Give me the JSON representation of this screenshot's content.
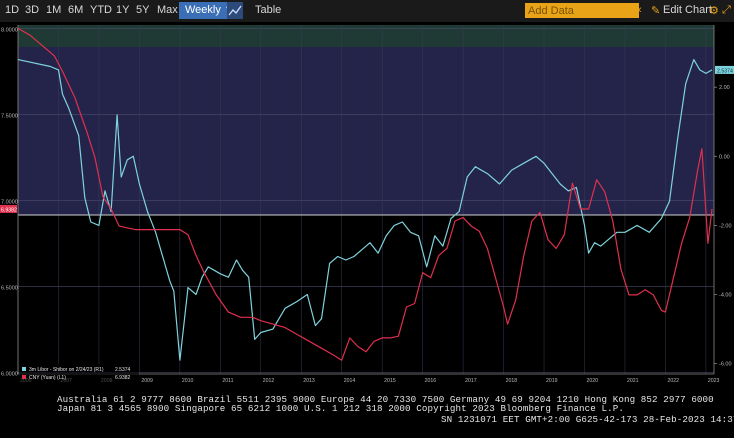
{
  "toolbar": {
    "ranges": [
      "1D",
      "3D",
      "1M",
      "6M",
      "YTD",
      "1Y",
      "5Y",
      "Max"
    ],
    "frequency": "Weekly ▼",
    "table_label": "Table",
    "add_data_placeholder": "Add Data",
    "edit_chart_label": "Edit Chart",
    "icons": [
      "chart-type-icon",
      "chevron-left-icon",
      "edit-pencil-icon",
      "settings-icon",
      "expand-icon"
    ]
  },
  "chart_data": {
    "type": "line",
    "panels": [
      {
        "name": "upper",
        "background": "#24244a",
        "highlight_band": "#1f3a35"
      },
      {
        "name": "lower",
        "background": "#000000"
      }
    ],
    "x_ticks": [
      "2006",
      "2007",
      "2008",
      "2009",
      "2010",
      "2011",
      "2012",
      "2013",
      "2014",
      "2015",
      "2016",
      "2017",
      "2018",
      "2019",
      "2020",
      "2021",
      "2022",
      "2023"
    ],
    "xlim": [
      2006.0,
      2023.2
    ],
    "left_axis": {
      "ticks": [
        "8.0000",
        "7.5000",
        "7.0000",
        "6.5000",
        "6.0000"
      ],
      "ylim": [
        5.99,
        8.02
      ]
    },
    "right_axis": {
      "ticks": [
        "2.00",
        "0.00",
        "-2.00",
        "-4.00",
        "-6.00"
      ],
      "ylim": [
        -6.3,
        3.8
      ]
    },
    "series": [
      {
        "name": "3m Libor - Shibor on 2/24/23 (R1)",
        "last_value": "2.5374",
        "color": "#7fd3dc",
        "x": [
          2006.0,
          2006.8,
          2007.0,
          2007.1,
          2007.25,
          2007.5,
          2007.65,
          2007.8,
          2008.0,
          2008.15,
          2008.3,
          2008.45,
          2008.55,
          2008.7,
          2008.85,
          2009.0,
          2009.2,
          2009.4,
          2009.6,
          2009.75,
          2009.85,
          2010.0,
          2010.2,
          2010.4,
          2010.55,
          2010.7,
          2010.85,
          2011.0,
          2011.2,
          2011.4,
          2011.55,
          2011.7,
          2011.85,
          2012.0,
          2012.3,
          2012.6,
          2012.9,
          2013.15,
          2013.35,
          2013.5,
          2013.7,
          2013.9,
          2014.1,
          2014.3,
          2014.5,
          2014.7,
          2014.9,
          2015.1,
          2015.3,
          2015.5,
          2015.7,
          2015.9,
          2016.1,
          2016.3,
          2016.5,
          2016.7,
          2016.9,
          2017.1,
          2017.3,
          2017.6,
          2017.9,
          2018.2,
          2018.5,
          2018.8,
          2019.0,
          2019.2,
          2019.4,
          2019.6,
          2019.8,
          2020.0,
          2020.1,
          2020.25,
          2020.4,
          2020.6,
          2020.8,
          2021.0,
          2021.3,
          2021.6,
          2021.9,
          2022.1,
          2022.3,
          2022.5,
          2022.7,
          2022.85,
          2023.0,
          2023.15
        ],
        "values": [
          2.8,
          2.6,
          2.5,
          1.8,
          1.4,
          0.6,
          -1.2,
          -1.9,
          -2.0,
          -1.0,
          -1.6,
          1.2,
          -0.6,
          -0.1,
          0.0,
          -0.8,
          -1.6,
          -2.2,
          -3.0,
          -3.6,
          -3.9,
          -5.9,
          -3.8,
          -4.0,
          -3.5,
          -3.2,
          -3.3,
          -3.4,
          -3.5,
          -3.0,
          -3.3,
          -3.5,
          -5.3,
          -5.1,
          -5.0,
          -4.4,
          -4.2,
          -4.0,
          -4.9,
          -4.7,
          -3.1,
          -2.9,
          -3.0,
          -2.9,
          -2.7,
          -2.5,
          -2.8,
          -2.3,
          -2.0,
          -1.9,
          -2.2,
          -2.3,
          -3.2,
          -2.3,
          -2.6,
          -1.8,
          -1.6,
          -0.6,
          -0.3,
          -0.5,
          -0.8,
          -0.4,
          -0.2,
          0.0,
          -0.2,
          -0.5,
          -0.8,
          -1.0,
          -0.9,
          -2.0,
          -2.8,
          -2.5,
          -2.6,
          -2.4,
          -2.2,
          -2.2,
          -2.0,
          -2.2,
          -1.8,
          -1.3,
          0.5,
          2.1,
          2.8,
          2.5,
          2.4,
          2.5
        ]
      },
      {
        "name": "CNY (Yuan) (L1)",
        "last_value": "6.9382",
        "color": "#e0304e",
        "x": [
          2006.0,
          2006.3,
          2006.6,
          2006.9,
          2007.1,
          2007.4,
          2007.7,
          2007.9,
          2008.1,
          2008.3,
          2008.5,
          2008.7,
          2008.9,
          2009.2,
          2009.5,
          2009.8,
          2010.0,
          2010.2,
          2010.4,
          2010.6,
          2010.9,
          2011.2,
          2011.5,
          2011.8,
          2012.0,
          2012.3,
          2012.6,
          2012.9,
          2013.2,
          2013.5,
          2013.8,
          2014.0,
          2014.2,
          2014.4,
          2014.6,
          2014.8,
          2015.0,
          2015.2,
          2015.4,
          2015.6,
          2015.8,
          2016.0,
          2016.2,
          2016.4,
          2016.6,
          2016.8,
          2017.0,
          2017.2,
          2017.4,
          2017.6,
          2017.8,
          2018.0,
          2018.1,
          2018.3,
          2018.5,
          2018.7,
          2018.9,
          2019.1,
          2019.3,
          2019.5,
          2019.7,
          2019.9,
          2020.1,
          2020.3,
          2020.5,
          2020.7,
          2020.9,
          2021.1,
          2021.3,
          2021.5,
          2021.7,
          2021.9,
          2022.0,
          2022.2,
          2022.4,
          2022.6,
          2022.8,
          2022.9,
          2023.05,
          2023.15
        ],
        "values": [
          8.0,
          7.96,
          7.9,
          7.84,
          7.75,
          7.6,
          7.4,
          7.25,
          7.02,
          6.95,
          6.85,
          6.84,
          6.83,
          6.83,
          6.83,
          6.83,
          6.83,
          6.8,
          6.68,
          6.58,
          6.45,
          6.35,
          6.32,
          6.32,
          6.3,
          6.28,
          6.26,
          6.22,
          6.18,
          6.14,
          6.1,
          6.07,
          6.2,
          6.15,
          6.12,
          6.18,
          6.2,
          6.2,
          6.21,
          6.38,
          6.4,
          6.58,
          6.55,
          6.68,
          6.72,
          6.88,
          6.9,
          6.85,
          6.82,
          6.72,
          6.55,
          6.38,
          6.28,
          6.42,
          6.68,
          6.88,
          6.93,
          6.77,
          6.72,
          6.8,
          7.1,
          6.95,
          6.95,
          7.12,
          7.05,
          6.88,
          6.6,
          6.45,
          6.45,
          6.48,
          6.45,
          6.36,
          6.35,
          6.55,
          6.75,
          6.9,
          7.18,
          7.3,
          6.75,
          6.95
        ]
      }
    ]
  },
  "footer": {
    "line1": "Australia 61 2 9777 8600 Brazil 5511 2395 9000 Europe 44 20 7330 7500 Germany 49 69 9204 1210 Hong Kong 852 2977 6000",
    "line2": "Japan 81 3 4565 8900      Singapore 65 6212 1000       U.S. 1 212 318 2000            Copyright 2023 Bloomberg Finance L.P.",
    "line3": "SN 1231071 EET  GMT+2:00 G625-42-173 28-Feb-2023 14:37:29"
  }
}
